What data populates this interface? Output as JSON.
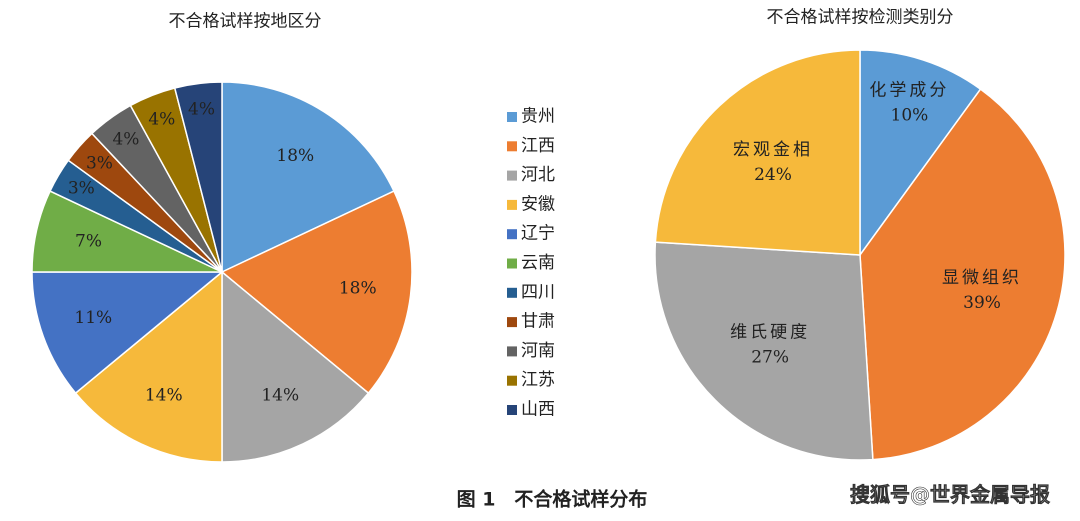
{
  "chart_data": [
    {
      "type": "pie",
      "title": "不合格试样按地区分",
      "categories": [
        "贵州",
        "江西",
        "河北",
        "安徽",
        "辽宁",
        "云南",
        "四川",
        "甘肃",
        "河南",
        "江苏",
        "山西"
      ],
      "values": [
        18,
        18,
        14,
        14,
        11,
        7,
        3,
        3,
        4,
        4,
        4
      ],
      "value_labels": [
        "18%",
        "18%",
        "14%",
        "14%",
        "11%",
        "7%",
        "3%",
        "3%",
        "4%",
        "4%",
        "4%"
      ],
      "colors": [
        "#5b9bd5",
        "#ed7d31",
        "#a5a5a5",
        "#f6b93b",
        "#4472c4",
        "#70ad47",
        "#255e91",
        "#9e480e",
        "#636363",
        "#997300",
        "#264478"
      ],
      "legend": "right"
    },
    {
      "type": "pie",
      "title": "不合格试样按检测类别分",
      "categories": [
        "化学成分",
        "显微组织",
        "维氏硬度",
        "宏观金相"
      ],
      "values": [
        10,
        39,
        27,
        24
      ],
      "value_labels": [
        "10%",
        "39%",
        "27%",
        "24%"
      ],
      "colors": [
        "#5b9bd5",
        "#ed7d31",
        "#a5a5a5",
        "#f6b93b"
      ]
    }
  ],
  "caption": "图 1　不合格试样分布",
  "watermark": "搜狐号@世界金属导报"
}
